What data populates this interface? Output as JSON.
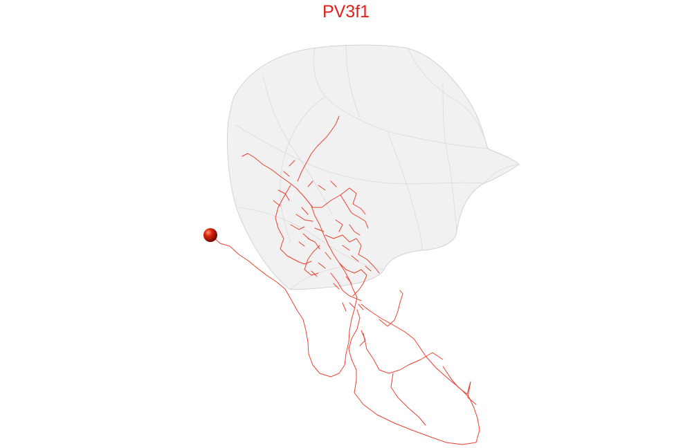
{
  "title": "PV3f1",
  "colors": {
    "background": "#ffffff",
    "title": "#e0211b",
    "neuron": "#e8402f",
    "soma": "#c81808",
    "mesh_fill": "#eeeeee",
    "mesh_edge": "#d2d2d2"
  }
}
